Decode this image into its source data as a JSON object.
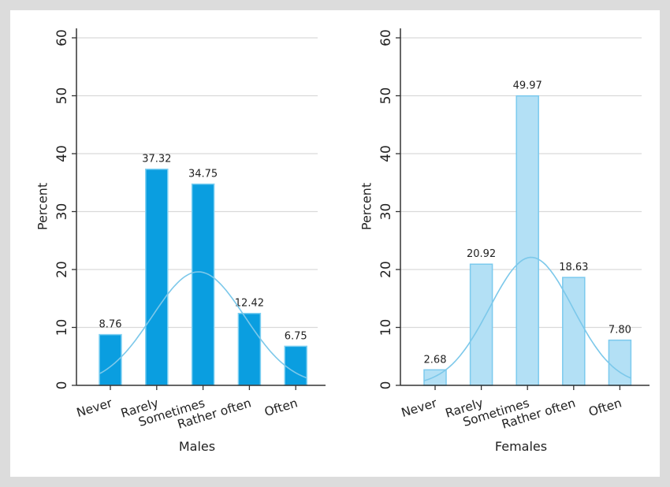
{
  "chart_data": [
    {
      "type": "bar",
      "title": "",
      "xlabel": "Males",
      "ylabel": "Percent",
      "categories": [
        "Never",
        "Rarely",
        "Sometimes",
        "Rather often",
        "Often"
      ],
      "values": [
        8.76,
        37.32,
        34.75,
        12.42,
        6.75
      ],
      "value_labels": [
        "8.76",
        "37.32",
        "34.75",
        "12.42",
        "6.75"
      ],
      "ylim": [
        0,
        60
      ],
      "yticks": [
        "0",
        "10",
        "20",
        "30",
        "40",
        "50",
        "60"
      ],
      "grid": true,
      "bar_color": "#0a9ee0",
      "bar_edge": "#7fd0f2",
      "overlay": {
        "type": "normal-curve",
        "color": "#7cc8ea",
        "peak": 19.6,
        "mean_index": 1.9,
        "sd_index": 1.0
      }
    },
    {
      "type": "bar",
      "title": "",
      "xlabel": "Females",
      "ylabel": "Percent",
      "categories": [
        "Never",
        "Rarely",
        "Sometimes",
        "Rather often",
        "Often"
      ],
      "values": [
        2.68,
        20.92,
        49.97,
        18.63,
        7.8
      ],
      "value_labels": [
        "2.68",
        "20.92",
        "49.97",
        "18.63",
        "7.80"
      ],
      "ylim": [
        0,
        60
      ],
      "yticks": [
        "0",
        "10",
        "20",
        "30",
        "40",
        "50",
        "60"
      ],
      "grid": true,
      "bar_color": "#b3e0f5",
      "bar_edge": "#7ccaee",
      "overlay": {
        "type": "normal-curve",
        "color": "#7cc8ea",
        "peak": 22.1,
        "mean_index": 2.08,
        "sd_index": 0.9
      }
    }
  ]
}
